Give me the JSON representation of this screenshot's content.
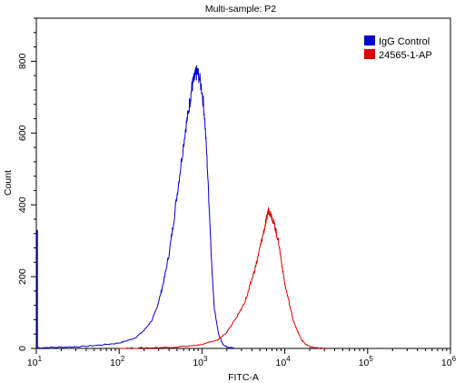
{
  "chart_data": {
    "type": "line",
    "title": "Multi-sample: P2",
    "xlabel": "FITC-A",
    "ylabel": "Count",
    "x_scale": "log",
    "xlim_log10": [
      1,
      6
    ],
    "ylim": [
      0,
      920
    ],
    "x_ticks": [
      {
        "base": "10",
        "exp": "1"
      },
      {
        "base": "10",
        "exp": "2"
      },
      {
        "base": "10",
        "exp": "3"
      },
      {
        "base": "10",
        "exp": "4"
      },
      {
        "base": "10",
        "exp": "5"
      },
      {
        "base": "10",
        "exp": "6"
      }
    ],
    "y_ticks": [
      "0",
      "200",
      "400",
      "600",
      "800"
    ],
    "y_tick_values": [
      0,
      200,
      400,
      600,
      800
    ],
    "legend_position": "top-right",
    "series": [
      {
        "name": "IgG Control",
        "color": "#0000cc",
        "log10_x": [
          1.0,
          1.2,
          1.4,
          1.6,
          1.8,
          2.0,
          2.1,
          2.2,
          2.3,
          2.4,
          2.45,
          2.5,
          2.55,
          2.6,
          2.65,
          2.7,
          2.75,
          2.8,
          2.83,
          2.86,
          2.88,
          2.9,
          2.92,
          2.94,
          2.96,
          3.0,
          3.03,
          3.06,
          3.09,
          3.12,
          3.15,
          3.2,
          3.25,
          3.3,
          3.4
        ],
        "y": [
          2,
          3,
          4,
          6,
          10,
          15,
          22,
          30,
          50,
          80,
          110,
          150,
          200,
          260,
          340,
          430,
          520,
          610,
          650,
          700,
          730,
          745,
          760,
          770,
          760,
          720,
          650,
          530,
          380,
          220,
          110,
          40,
          12,
          4,
          0
        ]
      },
      {
        "name": "24565-1-AP",
        "color": "#dd0000",
        "log10_x": [
          2.0,
          2.2,
          2.4,
          2.6,
          2.75,
          3.0,
          3.2,
          3.3,
          3.4,
          3.5,
          3.55,
          3.6,
          3.65,
          3.7,
          3.73,
          3.76,
          3.78,
          3.8,
          3.82,
          3.84,
          3.86,
          3.88,
          3.9,
          3.93,
          3.96,
          4.0,
          4.05,
          4.1,
          4.15,
          4.2,
          4.25,
          4.3,
          4.35,
          4.4,
          4.5
        ],
        "y": [
          0,
          1,
          2,
          3,
          5,
          10,
          25,
          45,
          80,
          120,
          150,
          190,
          230,
          280,
          310,
          340,
          360,
          385,
          380,
          370,
          355,
          340,
          320,
          290,
          240,
          180,
          130,
          80,
          50,
          25,
          12,
          5,
          2,
          1,
          0
        ]
      }
    ]
  }
}
